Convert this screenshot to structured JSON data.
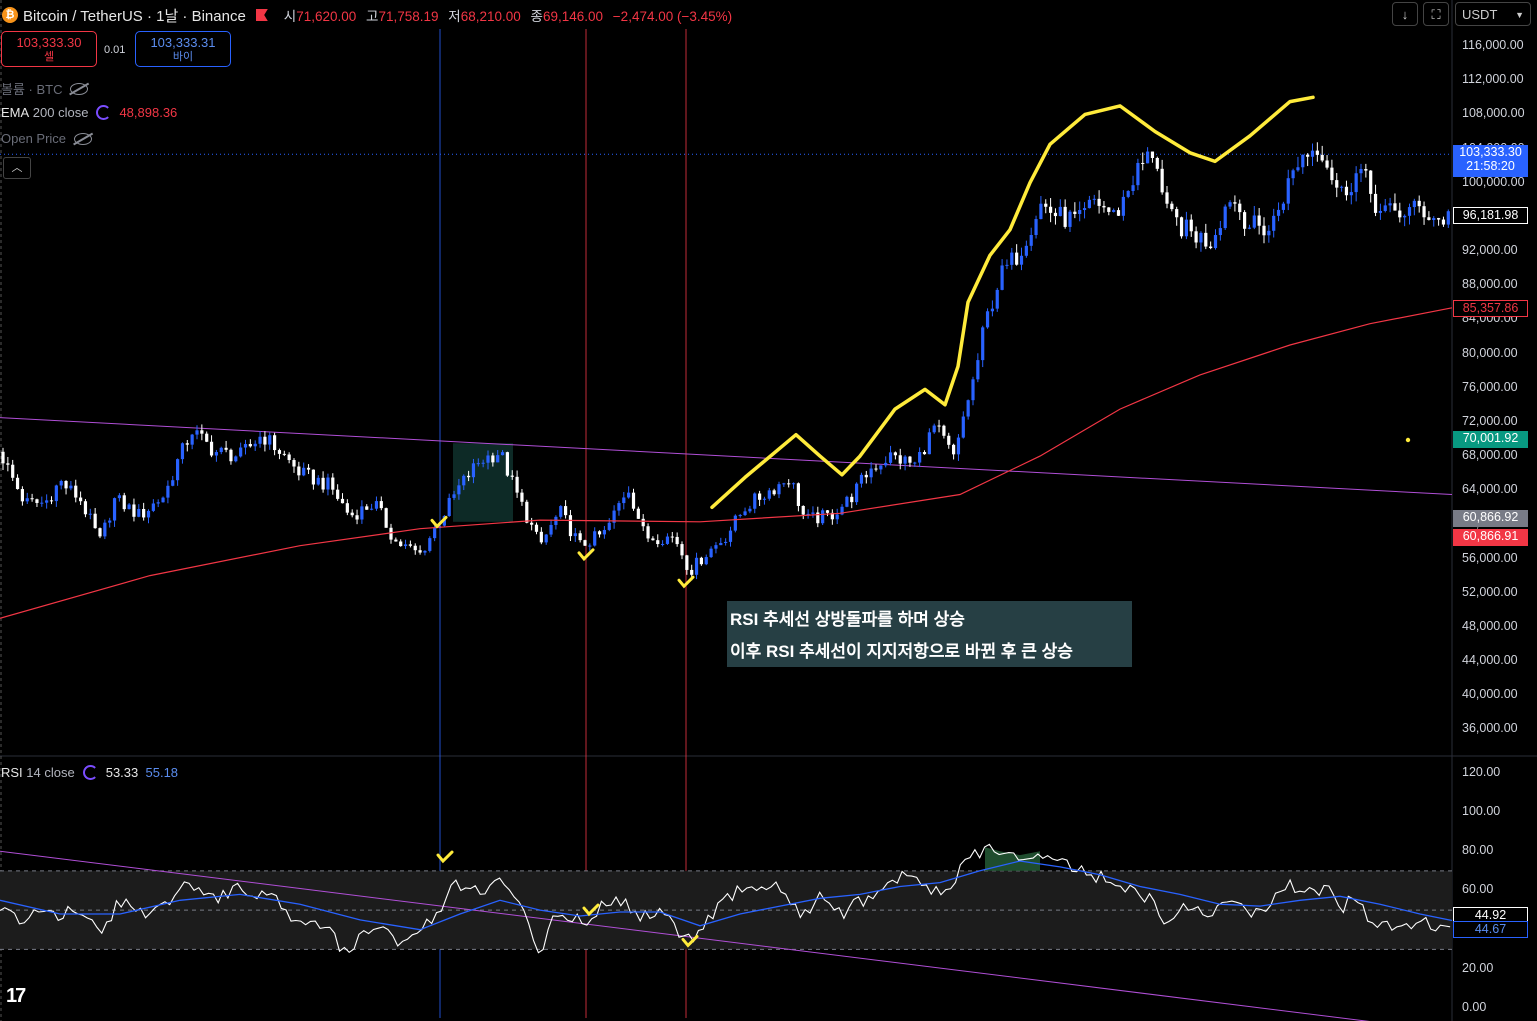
{
  "header": {
    "symbol": "Bitcoin / TetherUS · 1날 · Binance",
    "open_label": "시",
    "open": "71,620.00",
    "high_label": "고",
    "high": "71,758.19",
    "low_label": "저",
    "low": "68,210.00",
    "close_label": "종",
    "close": "69,146.00",
    "change": "−2,474.00 (−3.45%)"
  },
  "trade": {
    "sell_price": "103,333.30",
    "sell_label": "셀",
    "spread": "0.01",
    "buy_price": "103,333.31",
    "buy_label": "바이"
  },
  "legends": {
    "volume": "볼륨 · BTC",
    "ema_name": "EMA",
    "ema_params": "200 close",
    "ema_value": "48,898.36",
    "open_price": "Open Price",
    "rsi_name": "RSI",
    "rsi_params": "14 close",
    "rsi_value": "53.33",
    "rsi_ma_value": "55.18"
  },
  "toolbar": {
    "currency": "USDT",
    "down_arrow": "↓",
    "expand_icon": "⛶"
  },
  "annotation": {
    "line1": "RSI 추세선 상방돌파를 하며 상승",
    "line2": "이후 RSI 추세선이 지지저항으로 바뀐 후 큰 상승"
  },
  "logo": "17",
  "colors": {
    "up": "#2962ff",
    "down": "#ffffff",
    "ema": "#f23645",
    "trendline": "#b04fd6",
    "highlight": "#ffeb3b",
    "rsi": "#ffffff",
    "rsi_ma": "#2962ff"
  },
  "chart_data": [
    {
      "type": "candlestick",
      "yaxis_ticks": [
        "116,000.00",
        "112,000.00",
        "108,000.00",
        "104,000.00",
        "100,000.00",
        "96,000.00",
        "92,000.00",
        "88,000.00",
        "84,000.00",
        "80,000.00",
        "76,000.00",
        "72,000.00",
        "68,000.00",
        "64,000.00",
        "60,000.00",
        "56,000.00",
        "52,000.00",
        "48,000.00",
        "44,000.00",
        "40,000.00",
        "36,000.00"
      ],
      "ylim": [
        33000,
        118000
      ],
      "price_tags": [
        {
          "label": "103,333.30",
          "sub": "21:58:20",
          "color": "#2962ff",
          "value": 103333
        },
        {
          "label": "96,181.98",
          "color": "#ffffff",
          "value": 96182
        },
        {
          "label": "85,357.86",
          "color": "#f23645",
          "value": 85358
        },
        {
          "label": "70,001.92",
          "color": "#089981",
          "value": 70002
        },
        {
          "label": "60,866.92",
          "color": "#787b86",
          "value": 60867
        },
        {
          "label": "60,866.91",
          "color": "#f23645",
          "value": 60866
        }
      ],
      "price_path": [
        [
          0,
          68500
        ],
        [
          12,
          65500
        ],
        [
          25,
          62500
        ],
        [
          45,
          62500
        ],
        [
          60,
          65000
        ],
        [
          80,
          63000
        ],
        [
          100,
          58000
        ],
        [
          115,
          63000
        ],
        [
          140,
          61000
        ],
        [
          165,
          63500
        ],
        [
          178,
          67500
        ],
        [
          192,
          71000
        ],
        [
          215,
          68500
        ],
        [
          240,
          68000
        ],
        [
          262,
          70500
        ],
        [
          280,
          68500
        ],
        [
          300,
          66000
        ],
        [
          330,
          64500
        ],
        [
          350,
          61000
        ],
        [
          375,
          62500
        ],
        [
          395,
          58000
        ],
        [
          420,
          56500
        ],
        [
          445,
          61500
        ],
        [
          460,
          64500
        ],
        [
          480,
          67500
        ],
        [
          500,
          68500
        ],
        [
          515,
          64000
        ],
        [
          540,
          57500
        ],
        [
          560,
          61500
        ],
        [
          580,
          57500
        ],
        [
          605,
          59000
        ],
        [
          628,
          64500
        ],
        [
          645,
          58500
        ],
        [
          675,
          58500
        ],
        [
          690,
          54500
        ],
        [
          705,
          56500
        ],
        [
          725,
          58500
        ],
        [
          745,
          62000
        ],
        [
          770,
          64000
        ],
        [
          790,
          65500
        ],
        [
          805,
          60500
        ],
        [
          830,
          61000
        ],
        [
          850,
          63000
        ],
        [
          870,
          66500
        ],
        [
          890,
          68000
        ],
        [
          915,
          67000
        ],
        [
          935,
          71500
        ],
        [
          955,
          67500
        ],
        [
          965,
          73500
        ],
        [
          975,
          77500
        ],
        [
          985,
          83500
        ],
        [
          1000,
          89000
        ],
        [
          1020,
          92000
        ],
        [
          1040,
          97500
        ],
        [
          1060,
          96000
        ],
        [
          1080,
          95500
        ],
        [
          1095,
          98000
        ],
        [
          1115,
          96000
        ],
        [
          1135,
          101000
        ],
        [
          1155,
          104000
        ],
        [
          1165,
          96500
        ],
        [
          1185,
          94500
        ],
        [
          1210,
          93000
        ],
        [
          1230,
          98500
        ],
        [
          1250,
          95000
        ],
        [
          1270,
          94500
        ],
        [
          1285,
          99000
        ],
        [
          1300,
          103000
        ],
        [
          1320,
          104500
        ],
        [
          1340,
          98500
        ],
        [
          1360,
          101500
        ],
        [
          1380,
          96500
        ],
        [
          1400,
          96500
        ],
        [
          1420,
          97000
        ],
        [
          1440,
          95500
        ],
        [
          1450,
          96200
        ]
      ],
      "ema200": [
        [
          0,
          49000
        ],
        [
          150,
          54000
        ],
        [
          300,
          57500
        ],
        [
          420,
          59500
        ],
        [
          540,
          60500
        ],
        [
          700,
          60300
        ],
        [
          840,
          61300
        ],
        [
          960,
          63500
        ],
        [
          1040,
          68000
        ],
        [
          1120,
          73500
        ],
        [
          1200,
          77500
        ],
        [
          1290,
          81000
        ],
        [
          1370,
          83500
        ],
        [
          1452,
          85358
        ]
      ],
      "trendline": [
        [
          0,
          72500
        ],
        [
          1452,
          63500
        ]
      ],
      "highlight_curve": [
        [
          712,
          62000
        ],
        [
          745,
          65500
        ],
        [
          796,
          70500
        ],
        [
          820,
          68000
        ],
        [
          842,
          65800
        ],
        [
          860,
          68000
        ],
        [
          895,
          73500
        ],
        [
          925,
          75800
        ],
        [
          945,
          74000
        ],
        [
          958,
          78500
        ],
        [
          968,
          86000
        ],
        [
          990,
          91500
        ],
        [
          1010,
          94500
        ],
        [
          1030,
          100000
        ],
        [
          1050,
          104500
        ],
        [
          1085,
          108000
        ],
        [
          1120,
          109000
        ],
        [
          1155,
          106000
        ],
        [
          1190,
          103500
        ],
        [
          1215,
          102500
        ],
        [
          1250,
          105500
        ],
        [
          1290,
          109500
        ],
        [
          1313,
          110000
        ]
      ],
      "vertical_markers": [
        {
          "x": 440,
          "color": "#2962ff"
        },
        {
          "x": 586,
          "color": "#f23645"
        },
        {
          "x": 686,
          "color": "#f23645"
        }
      ],
      "checkmarks_price": [
        [
          438,
          60000
        ],
        [
          585,
          56200
        ],
        [
          685,
          53000
        ]
      ],
      "highlight_box": {
        "x0": 453,
        "x1": 513,
        "y_high": 69500,
        "y_low": 60300
      }
    },
    {
      "type": "line",
      "name": "RSI 14 close",
      "yaxis_ticks": [
        "120.00",
        "100.00",
        "80.00",
        "60.00",
        "40.00",
        "20.00",
        "0.00"
      ],
      "ylim": [
        -5,
        128
      ],
      "band": [
        30,
        70
      ],
      "midline": 50,
      "value_tags": [
        {
          "label": "44.92",
          "color": "#ffffff",
          "value": 44.92
        },
        {
          "label": "44.67",
          "color": "#2962ff",
          "value": 44.67
        }
      ],
      "rsi": [
        [
          0,
          52
        ],
        [
          20,
          44
        ],
        [
          40,
          52
        ],
        [
          60,
          47
        ],
        [
          80,
          52
        ],
        [
          100,
          38
        ],
        [
          120,
          55
        ],
        [
          140,
          48
        ],
        [
          165,
          54
        ],
        [
          185,
          63
        ],
        [
          200,
          58
        ],
        [
          215,
          55
        ],
        [
          235,
          62
        ],
        [
          255,
          55
        ],
        [
          265,
          60
        ],
        [
          290,
          48
        ],
        [
          310,
          42
        ],
        [
          330,
          38
        ],
        [
          345,
          28
        ],
        [
          365,
          37
        ],
        [
          385,
          45
        ],
        [
          398,
          30
        ],
        [
          420,
          38
        ],
        [
          440,
          50
        ],
        [
          455,
          64
        ],
        [
          470,
          62
        ],
        [
          485,
          57
        ],
        [
          500,
          65
        ],
        [
          512,
          60
        ],
        [
          525,
          48
        ],
        [
          540,
          28
        ],
        [
          555,
          48
        ],
        [
          570,
          46
        ],
        [
          585,
          43
        ],
        [
          600,
          52
        ],
        [
          620,
          55
        ],
        [
          640,
          46
        ],
        [
          660,
          50
        ],
        [
          680,
          38
        ],
        [
          690,
          35
        ],
        [
          705,
          42
        ],
        [
          720,
          52
        ],
        [
          740,
          62
        ],
        [
          760,
          60
        ],
        [
          780,
          63
        ],
        [
          800,
          48
        ],
        [
          820,
          56
        ],
        [
          840,
          48
        ],
        [
          860,
          54
        ],
        [
          880,
          62
        ],
        [
          900,
          67
        ],
        [
          915,
          65
        ],
        [
          930,
          58
        ],
        [
          950,
          62
        ],
        [
          962,
          72
        ],
        [
          975,
          78
        ],
        [
          985,
          82
        ],
        [
          1000,
          80
        ],
        [
          1020,
          78
        ],
        [
          1040,
          80
        ],
        [
          1055,
          74
        ],
        [
          1075,
          72
        ],
        [
          1090,
          68
        ],
        [
          1110,
          65
        ],
        [
          1130,
          60
        ],
        [
          1150,
          55
        ],
        [
          1165,
          45
        ],
        [
          1185,
          52
        ],
        [
          1210,
          48
        ],
        [
          1230,
          55
        ],
        [
          1250,
          46
        ],
        [
          1270,
          54
        ],
        [
          1290,
          62
        ],
        [
          1310,
          58
        ],
        [
          1325,
          62
        ],
        [
          1340,
          50
        ],
        [
          1355,
          57
        ],
        [
          1370,
          46
        ],
        [
          1385,
          42
        ],
        [
          1405,
          42
        ],
        [
          1425,
          44
        ],
        [
          1440,
          40
        ],
        [
          1452,
          45
        ]
      ],
      "rsi_ma": [
        [
          0,
          55
        ],
        [
          60,
          48
        ],
        [
          120,
          48
        ],
        [
          180,
          55
        ],
        [
          240,
          58
        ],
        [
          300,
          53
        ],
        [
          360,
          45
        ],
        [
          420,
          40
        ],
        [
          460,
          48
        ],
        [
          500,
          55
        ],
        [
          540,
          50
        ],
        [
          580,
          47
        ],
        [
          620,
          49
        ],
        [
          660,
          49
        ],
        [
          700,
          42
        ],
        [
          740,
          48
        ],
        [
          780,
          52
        ],
        [
          820,
          56
        ],
        [
          860,
          58
        ],
        [
          900,
          62
        ],
        [
          940,
          64
        ],
        [
          980,
          70
        ],
        [
          1020,
          75
        ],
        [
          1060,
          72
        ],
        [
          1100,
          68
        ],
        [
          1140,
          62
        ],
        [
          1180,
          58
        ],
        [
          1220,
          53
        ],
        [
          1260,
          52
        ],
        [
          1300,
          55
        ],
        [
          1340,
          57
        ],
        [
          1380,
          53
        ],
        [
          1420,
          48
        ],
        [
          1452,
          44.67
        ]
      ],
      "trendline": [
        [
          0,
          80
        ],
        [
          1452,
          -12
        ]
      ],
      "overbought_fill_range": [
        980,
        1045
      ],
      "checkmarks_rsi": [
        [
          444,
          76
        ],
        [
          590,
          49
        ],
        [
          689,
          33
        ]
      ]
    }
  ]
}
